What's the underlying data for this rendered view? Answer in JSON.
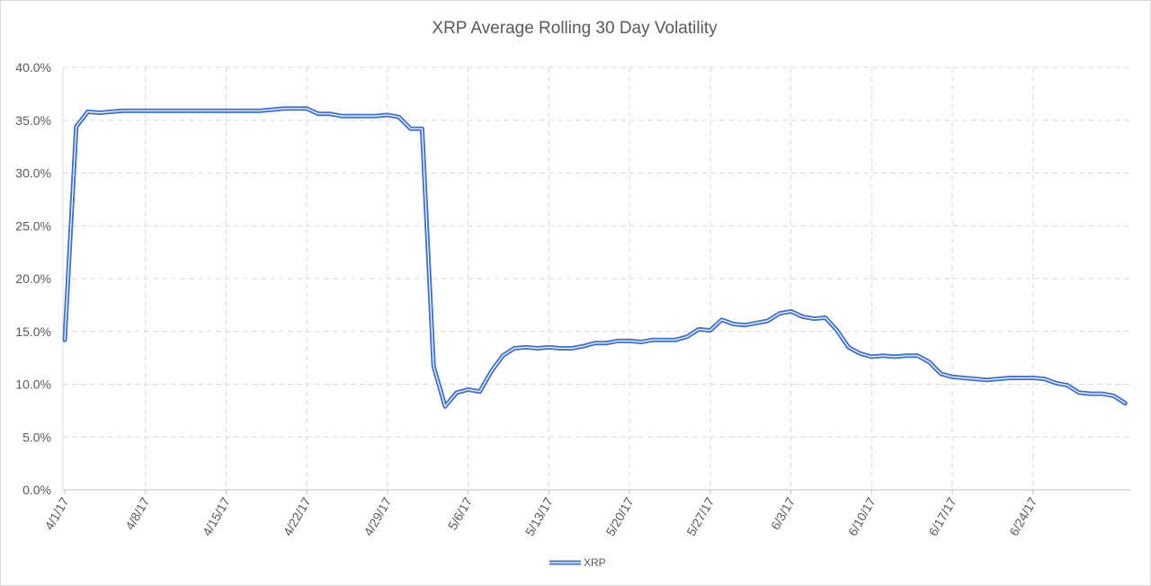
{
  "chart_data": {
    "type": "line",
    "title": "XRP Average Rolling 30 Day Volatility",
    "xlabel": "",
    "ylabel": "",
    "ylim": [
      0,
      0.4
    ],
    "yticks": [
      "0.0%",
      "5.0%",
      "10.0%",
      "15.0%",
      "20.0%",
      "25.0%",
      "30.0%",
      "35.0%",
      "40.0%"
    ],
    "xticks": [
      "4/1/17",
      "4/8/17",
      "4/15/17",
      "4/22/17",
      "4/29/17",
      "5/6/17",
      "5/13/17",
      "5/20/17",
      "5/27/17",
      "6/3/17",
      "6/10/17",
      "6/17/17",
      "6/24/17"
    ],
    "x_start": "4/1/17",
    "grid": true,
    "legend_position": "bottom",
    "line_color": "#4472c4",
    "series": [
      {
        "name": "XRP",
        "values": [
          0.142,
          0.344,
          0.358,
          0.357,
          0.358,
          0.359,
          0.359,
          0.359,
          0.359,
          0.359,
          0.359,
          0.359,
          0.359,
          0.359,
          0.359,
          0.359,
          0.359,
          0.359,
          0.36,
          0.361,
          0.361,
          0.361,
          0.356,
          0.356,
          0.354,
          0.354,
          0.354,
          0.354,
          0.355,
          0.353,
          0.342,
          0.342,
          0.117,
          0.079,
          0.092,
          0.095,
          0.093,
          0.112,
          0.127,
          0.134,
          0.135,
          0.134,
          0.135,
          0.134,
          0.134,
          0.136,
          0.139,
          0.139,
          0.141,
          0.141,
          0.14,
          0.142,
          0.142,
          0.142,
          0.145,
          0.152,
          0.151,
          0.161,
          0.157,
          0.156,
          0.158,
          0.16,
          0.167,
          0.169,
          0.164,
          0.162,
          0.163,
          0.151,
          0.135,
          0.129,
          0.126,
          0.127,
          0.126,
          0.127,
          0.127,
          0.121,
          0.11,
          0.107,
          0.106,
          0.105,
          0.104,
          0.105,
          0.106,
          0.106,
          0.106,
          0.105,
          0.101,
          0.099,
          0.092,
          0.091,
          0.091,
          0.089,
          0.082
        ]
      }
    ]
  }
}
